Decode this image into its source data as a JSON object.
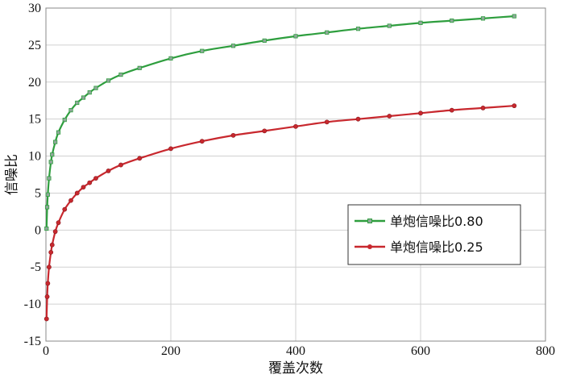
{
  "chart_data": {
    "type": "line",
    "title": "",
    "xlabel": "覆盖次数",
    "ylabel": "信噪比",
    "xlim": [
      0,
      800
    ],
    "ylim": [
      -15,
      30
    ],
    "xticks": [
      0,
      200,
      400,
      600,
      800
    ],
    "yticks": [
      -15,
      -10,
      -5,
      0,
      5,
      10,
      15,
      20,
      25,
      30
    ],
    "grid": true,
    "legend": "center-right",
    "series": [
      {
        "name": "单炮信噪比0.80",
        "color": "#2e9e3e",
        "marker": "square",
        "x": [
          1,
          2,
          3,
          5,
          8,
          10,
          15,
          20,
          30,
          40,
          50,
          60,
          70,
          80,
          100,
          120,
          150,
          200,
          250,
          300,
          350,
          400,
          450,
          500,
          550,
          600,
          650,
          700,
          750
        ],
        "y": [
          0.2,
          3.1,
          4.8,
          7.0,
          9.2,
          10.2,
          11.9,
          13.2,
          14.9,
          16.2,
          17.2,
          17.9,
          18.6,
          19.2,
          20.2,
          21.0,
          21.9,
          23.2,
          24.2,
          24.9,
          25.6,
          26.2,
          26.7,
          27.2,
          27.6,
          28.0,
          28.3,
          28.6,
          28.9
        ]
      },
      {
        "name": "单炮信噪比0.25",
        "color": "#c8282e",
        "marker": "circle",
        "x": [
          1,
          2,
          3,
          5,
          8,
          10,
          15,
          20,
          30,
          40,
          50,
          60,
          70,
          80,
          100,
          120,
          150,
          200,
          250,
          300,
          350,
          400,
          450,
          500,
          550,
          600,
          650,
          700,
          750
        ],
        "y": [
          -12.0,
          -9.0,
          -7.2,
          -5.0,
          -3.0,
          -2.0,
          -0.2,
          1.0,
          2.8,
          4.0,
          5.0,
          5.8,
          6.4,
          7.0,
          8.0,
          8.8,
          9.7,
          11.0,
          12.0,
          12.8,
          13.4,
          14.0,
          14.6,
          15.0,
          15.4,
          15.8,
          16.2,
          16.5,
          16.8
        ]
      }
    ]
  }
}
